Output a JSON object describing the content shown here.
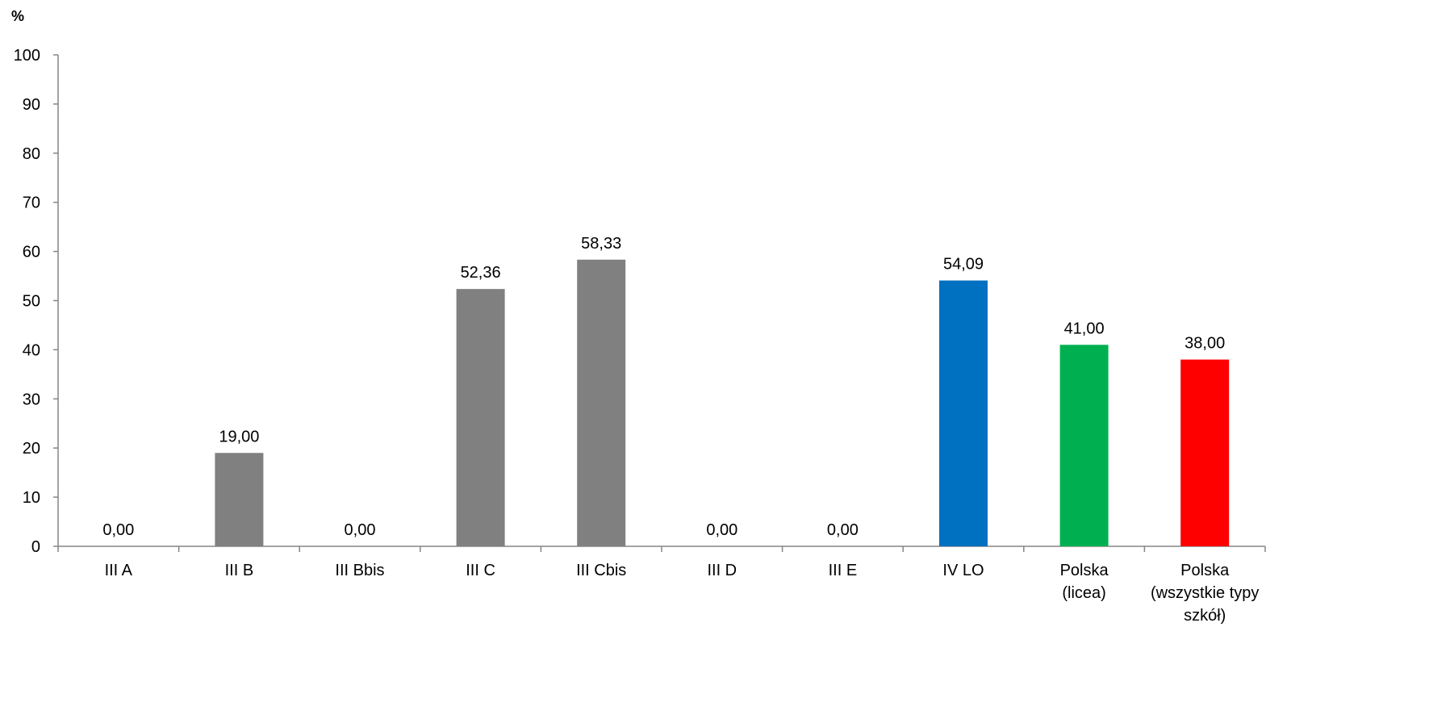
{
  "chart_data": {
    "type": "bar",
    "title": "",
    "unit_label": "%",
    "ylim": [
      0,
      100
    ],
    "yticks": [
      0,
      10,
      20,
      30,
      40,
      50,
      60,
      70,
      80,
      90,
      100
    ],
    "grid": false,
    "categories": [
      [
        "III A"
      ],
      [
        "III B"
      ],
      [
        "III Bbis"
      ],
      [
        "III C"
      ],
      [
        "III Cbis"
      ],
      [
        "III D"
      ],
      [
        "III E"
      ],
      [
        "IV LO"
      ],
      [
        "Polska",
        "(licea)"
      ],
      [
        "Polska",
        "(wszystkie typy",
        "szkół)"
      ]
    ],
    "values": [
      0,
      19,
      0,
      52.36,
      58.33,
      0,
      0,
      54.09,
      41,
      38
    ],
    "value_labels": [
      "0,00",
      "19,00",
      "0,00",
      "52,36",
      "58,33",
      "0,00",
      "0,00",
      "54,09",
      "41,00",
      "38,00"
    ],
    "colors": [
      "#808080",
      "#808080",
      "#808080",
      "#808080",
      "#808080",
      "#808080",
      "#808080",
      "#0070C0",
      "#00B050",
      "#FF0000"
    ]
  }
}
